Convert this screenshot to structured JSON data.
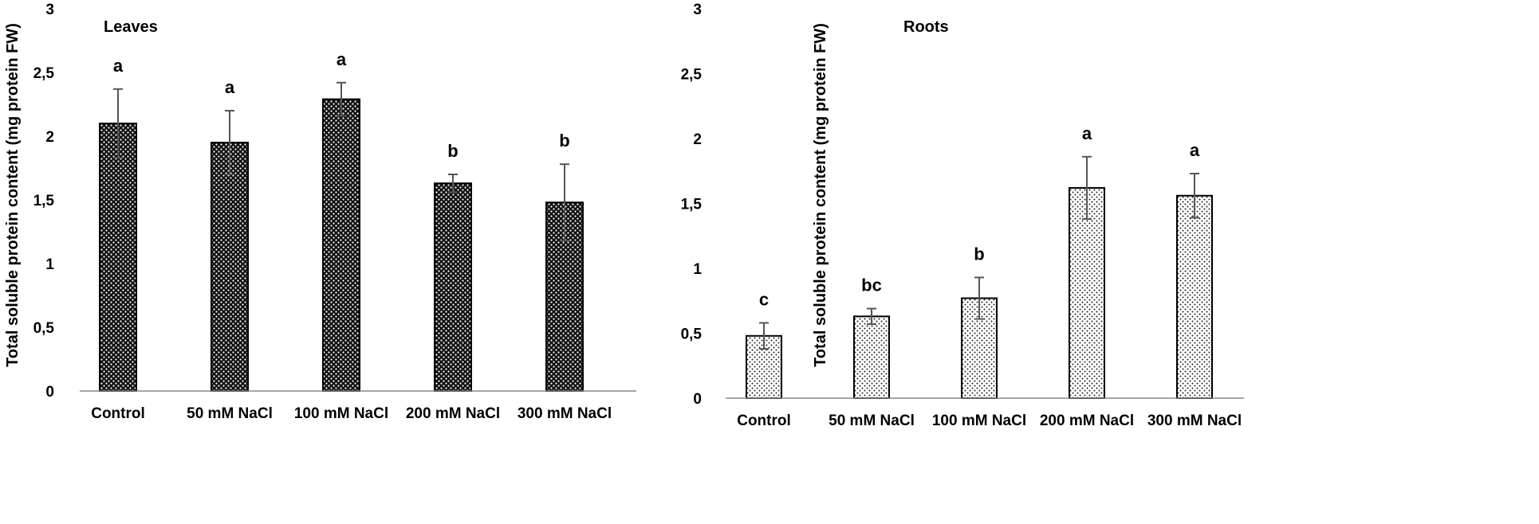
{
  "chart_data": [
    {
      "type": "bar",
      "title": "Leaves",
      "ylabel": "Total soluble protein content (mg protein FW)",
      "xlabel": "",
      "categories": [
        "Control",
        "50 mM NaCl",
        "100 mM NaCl",
        "200 mM NaCl",
        "300 mM NaCl"
      ],
      "values": [
        2.1,
        1.95,
        2.29,
        1.63,
        1.48
      ],
      "errors": [
        0.27,
        0.25,
        0.13,
        0.07,
        0.3
      ],
      "letters": [
        "a",
        "a",
        "a",
        "b",
        "b"
      ],
      "ylim": [
        0,
        3
      ],
      "yticks": [
        0,
        0.5,
        1,
        1.5,
        2,
        2.5,
        3
      ],
      "ytick_labels": [
        "0",
        "0,5",
        "1",
        "1,5",
        "2",
        "2,5",
        "3"
      ],
      "pattern": "dense",
      "grid": false
    },
    {
      "type": "bar",
      "title": "Roots",
      "ylabel": "Total soluble protein content (mg protein FW)",
      "xlabel": "",
      "categories": [
        "Control",
        "50 mM NaCl",
        "100 mM NaCl",
        "200 mM NaCl",
        "300 mM NaCl"
      ],
      "values": [
        0.48,
        0.63,
        0.77,
        1.62,
        1.56
      ],
      "errors": [
        0.1,
        0.06,
        0.16,
        0.24,
        0.17
      ],
      "letters": [
        "c",
        "bc",
        "b",
        "a",
        "a"
      ],
      "ylim": [
        0,
        3
      ],
      "yticks": [
        0,
        0.5,
        1,
        1.5,
        2,
        2.5,
        3
      ],
      "ytick_labels": [
        "0",
        "0,5",
        "1",
        "1,5",
        "2",
        "2,5",
        "3"
      ],
      "pattern": "sparse",
      "grid": false
    }
  ]
}
